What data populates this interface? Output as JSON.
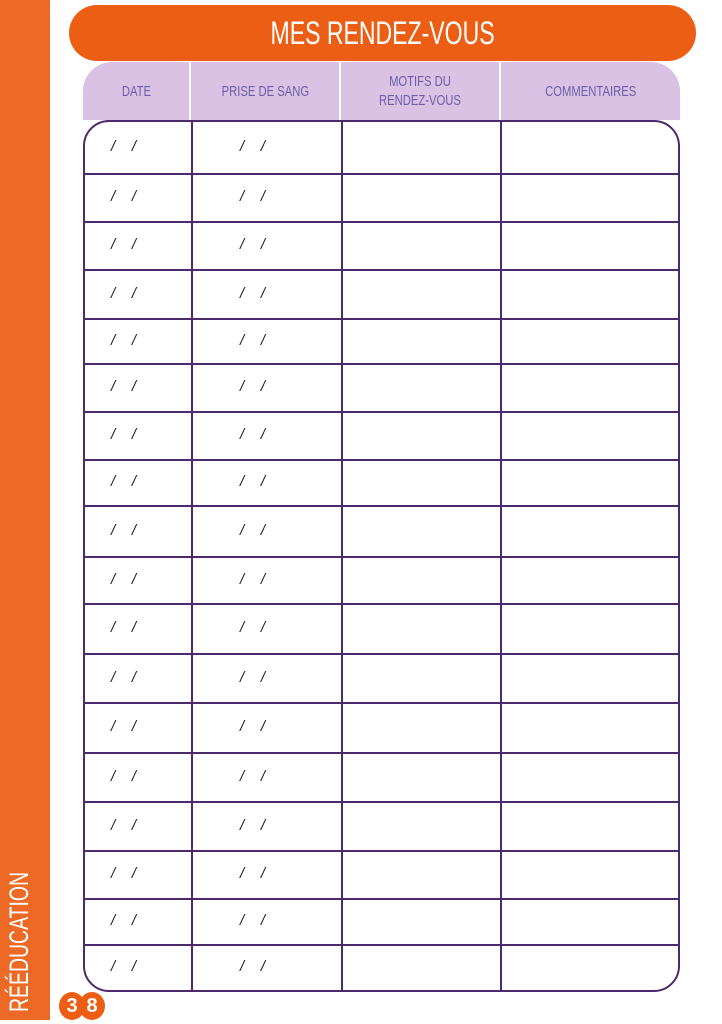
{
  "sidebar": {
    "label": "RÉÉDUCATION",
    "color": "#ec6a25"
  },
  "page_number": [
    "3",
    "8"
  ],
  "title": "MES RENDEZ-VOUS",
  "columns": [
    "DATE",
    "PRISE DE SANG",
    "MOTIFS DU RENDEZ-VOUS",
    "COMMENTAIRES"
  ],
  "colors": {
    "title": "#ec5e14",
    "header": "#d9c2e3",
    "header_text": "#6c5ea8",
    "border": "#4d2a6b"
  },
  "date_placeholder": "/    /",
  "row_count": 18
}
